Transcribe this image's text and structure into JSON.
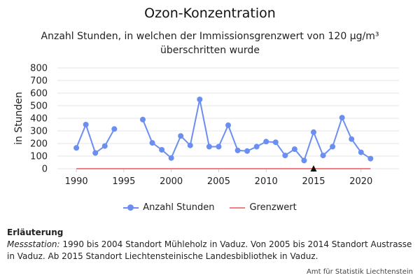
{
  "chart_data": {
    "type": "line",
    "title": "Ozon-Konzentration",
    "subtitle": "Anzahl Stunden, in welchen der Immissionsgrenzwert von 120 µg/m³ überschritten wurde",
    "ylabel": "in Stunden",
    "xlabel": "",
    "ylim": [
      0,
      800
    ],
    "yticks": [
      "0",
      "100",
      "200",
      "300",
      "400",
      "500",
      "600",
      "700",
      "800"
    ],
    "xlim": [
      1988,
      2024
    ],
    "xticks": [
      "1990",
      "1995",
      "2000",
      "2005",
      "2010",
      "2015",
      "2020"
    ],
    "legend_position": "bottom",
    "grid": true,
    "series": [
      {
        "name": "Anzahl Stunden",
        "color": "#6b8ff0",
        "x": [
          1990,
          1991,
          1992,
          1993,
          1994,
          1995,
          1996,
          1997,
          1998,
          1999,
          2000,
          2001,
          2002,
          2003,
          2004,
          2005,
          2006,
          2007,
          2008,
          2009,
          2010,
          2011,
          2012,
          2013,
          2014,
          2015,
          2016,
          2017,
          2018,
          2019,
          2020,
          2021
        ],
        "values": [
          165,
          350,
          125,
          180,
          315,
          null,
          null,
          390,
          205,
          150,
          85,
          260,
          185,
          550,
          175,
          175,
          345,
          145,
          140,
          175,
          215,
          210,
          105,
          155,
          65,
          290,
          105,
          175,
          405,
          235,
          130,
          80
        ]
      },
      {
        "name": "Grenzwert",
        "color": "#f08080",
        "x": [
          1990,
          2021
        ],
        "values": [
          0,
          0
        ]
      }
    ],
    "annotations": [
      {
        "type": "marker",
        "x": 2015,
        "y": 0,
        "symbol": "triangle-up",
        "color": "#111111"
      }
    ]
  },
  "note": {
    "heading": "Erläuterung",
    "label": "Messstation:",
    "text": " 1990 bis 2004 Standort Mühleholz in Vaduz. Von 2005 bis 2014 Standort Austrasse in Vaduz. Ab 2015 Standort Liechtensteinische Landesbibliothek in Vaduz."
  },
  "source": "Amt für Statistik Liechtenstein"
}
